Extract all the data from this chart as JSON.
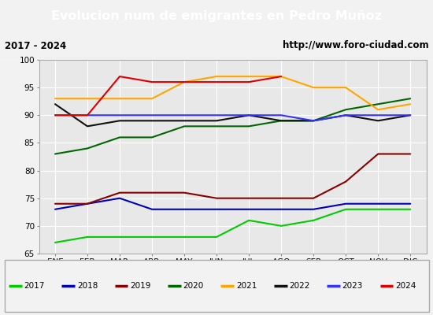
{
  "title": "Evolucion num de emigrantes en Pedro Muñoz",
  "subtitle_left": "2017 - 2024",
  "subtitle_right": "http://www.foro-ciudad.com",
  "months": [
    "ENE",
    "FEB",
    "MAR",
    "ABR",
    "MAY",
    "JUN",
    "JUL",
    "AGO",
    "SEP",
    "OCT",
    "NOV",
    "DIC"
  ],
  "ylim": [
    65,
    100
  ],
  "yticks": [
    65,
    70,
    75,
    80,
    85,
    90,
    95,
    100
  ],
  "series": {
    "2017": {
      "color": "#00cc00",
      "data": [
        67,
        68,
        68,
        68,
        68,
        68,
        71,
        70,
        71,
        73,
        73,
        73
      ]
    },
    "2018": {
      "color": "#0000bb",
      "data": [
        73,
        74,
        75,
        73,
        73,
        73,
        73,
        73,
        73,
        74,
        74,
        74
      ]
    },
    "2019": {
      "color": "#880000",
      "data": [
        74,
        74,
        76,
        76,
        76,
        75,
        75,
        75,
        75,
        78,
        83,
        83
      ]
    },
    "2020": {
      "color": "#006600",
      "data": [
        83,
        84,
        86,
        86,
        88,
        88,
        88,
        89,
        89,
        91,
        92,
        93
      ]
    },
    "2021": {
      "color": "#ffa500",
      "data": [
        93,
        93,
        93,
        93,
        96,
        97,
        97,
        97,
        95,
        95,
        91,
        92
      ]
    },
    "2022": {
      "color": "#111111",
      "data": [
        92,
        88,
        89,
        89,
        89,
        89,
        90,
        89,
        89,
        90,
        89,
        90
      ]
    },
    "2023": {
      "color": "#3333ff",
      "data": [
        90,
        90,
        90,
        90,
        90,
        90,
        90,
        90,
        89,
        90,
        90,
        90
      ]
    },
    "2024": {
      "color": "#dd0000",
      "data": [
        90,
        90,
        97,
        96,
        96,
        96,
        96,
        97,
        null,
        null,
        null,
        null
      ]
    }
  },
  "legend_order": [
    "2017",
    "2018",
    "2019",
    "2020",
    "2021",
    "2022",
    "2023",
    "2024"
  ],
  "title_bg_color": "#4c7db5",
  "title_text_color": "#ffffff",
  "plot_bg_color": "#e8e8e8",
  "grid_color": "#ffffff",
  "subtitle_bg_color": "#f2f2f2"
}
